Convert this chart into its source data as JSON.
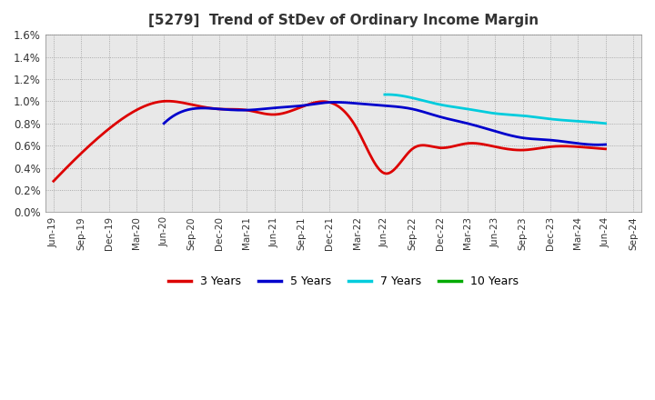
{
  "title": "[5279]  Trend of StDev of Ordinary Income Margin",
  "title_fontsize": 11,
  "ylim": [
    0.0,
    0.016
  ],
  "yticks": [
    0.0,
    0.002,
    0.004,
    0.006,
    0.008,
    0.01,
    0.012,
    0.014,
    0.016
  ],
  "ytick_labels": [
    "0.0%",
    "0.2%",
    "0.4%",
    "0.6%",
    "0.8%",
    "1.0%",
    "1.2%",
    "1.4%",
    "1.6%"
  ],
  "x_labels": [
    "Jun-19",
    "Sep-19",
    "Dec-19",
    "Mar-20",
    "Jun-20",
    "Sep-20",
    "Dec-20",
    "Mar-21",
    "Jun-21",
    "Sep-21",
    "Dec-21",
    "Mar-22",
    "Jun-22",
    "Sep-22",
    "Dec-22",
    "Mar-23",
    "Jun-23",
    "Sep-23",
    "Dec-23",
    "Mar-24",
    "Jun-24",
    "Sep-24"
  ],
  "series": {
    "3 Years": {
      "color": "#dd0000",
      "data": [
        0.0028,
        0.0053,
        0.0075,
        0.0092,
        0.01,
        0.0097,
        0.0093,
        0.0092,
        0.0088,
        0.0095,
        0.0099,
        0.0075,
        0.0035,
        0.0057,
        0.0058,
        0.0062,
        0.0059,
        0.0056,
        0.0059,
        0.0059,
        0.0057,
        null
      ]
    },
    "5 Years": {
      "color": "#0000cc",
      "data": [
        null,
        null,
        null,
        null,
        0.008,
        0.0093,
        0.0093,
        0.0092,
        0.0094,
        0.0096,
        0.0099,
        0.0098,
        0.0096,
        0.0093,
        0.0086,
        0.008,
        0.0073,
        0.0067,
        0.0065,
        0.0062,
        0.0061,
        null
      ]
    },
    "7 Years": {
      "color": "#00ccdd",
      "data": [
        null,
        null,
        null,
        null,
        null,
        null,
        null,
        null,
        null,
        null,
        null,
        null,
        0.0106,
        0.0103,
        0.0097,
        0.0093,
        0.0089,
        0.0087,
        0.0084,
        0.0082,
        0.008,
        null
      ]
    },
    "10 Years": {
      "color": "#00aa00",
      "data": [
        null,
        null,
        null,
        null,
        null,
        null,
        null,
        null,
        null,
        null,
        null,
        null,
        null,
        null,
        null,
        null,
        null,
        null,
        null,
        null,
        null,
        null
      ]
    }
  },
  "legend_labels": [
    "3 Years",
    "5 Years",
    "7 Years",
    "10 Years"
  ],
  "legend_colors": [
    "#dd0000",
    "#0000cc",
    "#00ccdd",
    "#00aa00"
  ],
  "background_color": "#ffffff",
  "plot_bg_color": "#e8e8e8",
  "grid_color": "#aaaaaa"
}
